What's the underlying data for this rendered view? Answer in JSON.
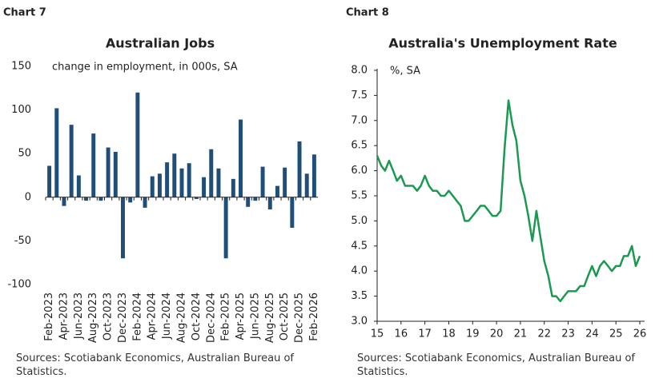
{
  "chart_data": [
    {
      "type": "bar",
      "label": "Chart 7",
      "title": "Australian Jobs",
      "subtitle": "change in employment, in 000s, SA",
      "source": "Sources: Scotiabank Economics, Australian Bureau of Statistics.",
      "categories": [
        "Feb-2023",
        null,
        "Apr-2023",
        null,
        "Jun-2023",
        null,
        "Aug-2023",
        null,
        "Oct-2023",
        null,
        "Dec-2023",
        null,
        "Feb-2024",
        null,
        "Apr-2024",
        null,
        "Jun-2024",
        null,
        "Aug-2024",
        null,
        "Oct-2024",
        null,
        "Dec-2024",
        null,
        "Feb-2025",
        null,
        "Apr-2025",
        null,
        "Jun-2025",
        null,
        "Aug-2025",
        null,
        "Oct-2025",
        null,
        "Dec-2025",
        null,
        "Feb-2026"
      ],
      "values": [
        36,
        102,
        -10,
        83,
        25,
        -4,
        73,
        -4,
        57,
        52,
        -70,
        -6,
        120,
        -12,
        24,
        27,
        40,
        50,
        33,
        39,
        -2,
        23,
        55,
        33,
        -70,
        21,
        89,
        -11,
        -4,
        35,
        -14,
        13,
        34,
        -35,
        64,
        27,
        49
      ],
      "color": "#1f4e79",
      "ylim": [
        -100,
        150
      ],
      "yticks": [
        -100,
        -50,
        0,
        50,
        100,
        150
      ]
    },
    {
      "type": "line",
      "label": "Chart 8",
      "title": "Australia's Unemployment Rate",
      "subtitle": "%, SA",
      "source": "Sources: Scotiabank Economics, Australian Bureau of Statistics.",
      "x": [
        15,
        15.17,
        15.33,
        15.5,
        15.67,
        15.83,
        16,
        16.17,
        16.33,
        16.5,
        16.67,
        16.83,
        17,
        17.17,
        17.33,
        17.5,
        17.67,
        17.83,
        18,
        18.17,
        18.33,
        18.5,
        18.67,
        18.83,
        19,
        19.17,
        19.33,
        19.5,
        19.67,
        19.83,
        20,
        20.17,
        20.33,
        20.5,
        20.67,
        20.83,
        21,
        21.17,
        21.33,
        21.5,
        21.67,
        21.83,
        22,
        22.17,
        22.33,
        22.5,
        22.67,
        22.83,
        23,
        23.17,
        23.33,
        23.5,
        23.67,
        23.83,
        24,
        24.17,
        24.33,
        24.5,
        24.67,
        24.83,
        25,
        25.17,
        25.33,
        25.5,
        25.67,
        25.83,
        26
      ],
      "values": [
        6.3,
        6.1,
        6.0,
        6.2,
        6.0,
        5.8,
        5.9,
        5.7,
        5.7,
        5.7,
        5.6,
        5.7,
        5.9,
        5.7,
        5.6,
        5.6,
        5.5,
        5.5,
        5.6,
        5.5,
        5.4,
        5.3,
        5.0,
        5.0,
        5.1,
        5.2,
        5.3,
        5.3,
        5.2,
        5.1,
        5.1,
        5.2,
        6.4,
        7.4,
        6.9,
        6.6,
        5.8,
        5.5,
        5.1,
        4.6,
        5.2,
        4.7,
        4.2,
        3.9,
        3.5,
        3.5,
        3.4,
        3.5,
        3.6,
        3.6,
        3.6,
        3.7,
        3.7,
        3.9,
        4.1,
        3.9,
        4.1,
        4.2,
        4.1,
        4.0,
        4.1,
        4.1,
        4.3,
        4.3,
        4.5,
        4.1,
        4.3
      ],
      "color": "#1a9a50",
      "xlim": [
        15,
        26.2
      ],
      "xticks": [
        15,
        16,
        17,
        18,
        19,
        20,
        21,
        22,
        23,
        24,
        25,
        26
      ],
      "ylim": [
        3,
        8
      ],
      "yticks": [
        {
          "value": 3,
          "label": "3.0"
        },
        {
          "value": 3.5,
          "label": "3.5"
        },
        {
          "value": 4,
          "label": "4.0"
        },
        {
          "value": 4.5,
          "label": "4.5"
        },
        {
          "value": 5,
          "label": "5.0"
        },
        {
          "value": 5.5,
          "label": "5.5"
        },
        {
          "value": 6,
          "label": "6.0"
        },
        {
          "value": 6.5,
          "label": "6.5"
        },
        {
          "value": 7,
          "label": "7.0"
        },
        {
          "value": 7.5,
          "label": "7.5"
        },
        {
          "value": 8,
          "label": "8.0"
        }
      ]
    }
  ]
}
